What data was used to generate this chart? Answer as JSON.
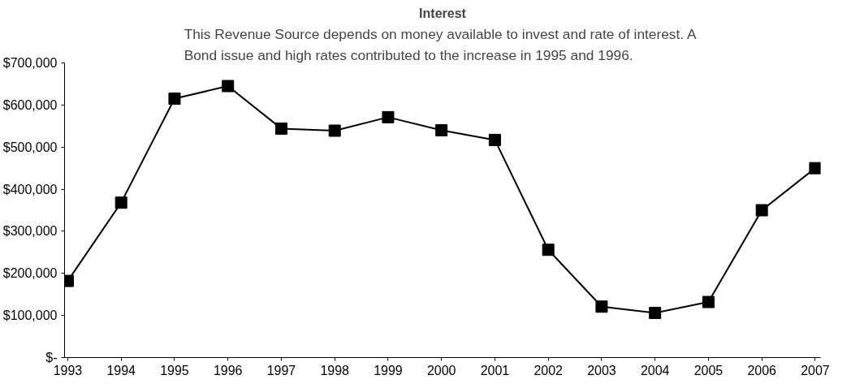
{
  "chart_data": {
    "type": "line",
    "title": "Interest",
    "subtitle": "This Revenue Source depends on money available to invest and rate of interest.  A\nBond issue and high rates contributed to the increase in 1995 and 1996.",
    "categories": [
      "1993",
      "1994",
      "1995",
      "1996",
      "1997",
      "1998",
      "1999",
      "2000",
      "2001",
      "2002",
      "2003",
      "2004",
      "2005",
      "2006",
      "2007"
    ],
    "series": [
      {
        "color": "#000000",
        "values": [
          182000,
          368000,
          615000,
          645000,
          544000,
          539000,
          571000,
          540000,
          517000,
          256000,
          121000,
          106000,
          132000,
          350000,
          450000
        ]
      }
    ],
    "ylim": [
      0,
      700000
    ],
    "yticks": [
      {
        "value": 0,
        "label": "$-"
      },
      {
        "value": 100000,
        "label": "$100,000"
      },
      {
        "value": 200000,
        "label": "$200,000"
      },
      {
        "value": 300000,
        "label": "$300,000"
      },
      {
        "value": 400000,
        "label": "$400,000"
      },
      {
        "value": 500000,
        "label": "$500,000"
      },
      {
        "value": 600000,
        "label": "$600,000"
      },
      {
        "value": 700000,
        "label": "$700,000"
      }
    ],
    "grid": false,
    "marker": "square",
    "line_style": "solid"
  }
}
